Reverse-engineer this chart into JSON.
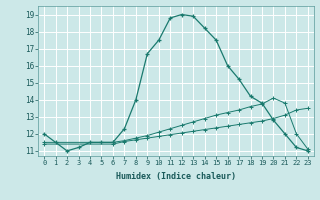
{
  "title": "",
  "xlabel": "Humidex (Indice chaleur)",
  "bg_color": "#cce8e8",
  "grid_color": "#ffffff",
  "line_color": "#1a7a6e",
  "xlim": [
    -0.5,
    23.5
  ],
  "ylim": [
    10.7,
    19.5
  ],
  "yticks": [
    11,
    12,
    13,
    14,
    15,
    16,
    17,
    18,
    19
  ],
  "xticks": [
    0,
    1,
    2,
    3,
    4,
    5,
    6,
    7,
    8,
    9,
    10,
    11,
    12,
    13,
    14,
    15,
    16,
    17,
    18,
    19,
    20,
    21,
    22,
    23
  ],
  "xtick_labels": [
    "0",
    "1",
    "2",
    "3",
    "4",
    "5",
    "6",
    "7",
    "8",
    "9",
    "10",
    "11",
    "12",
    "13",
    "14",
    "15",
    "16",
    "17",
    "18",
    "19",
    "20",
    "21",
    "22",
    "23"
  ],
  "series1_x": [
    0,
    1,
    2,
    3,
    4,
    5,
    6,
    7,
    8,
    9,
    10,
    11,
    12,
    13,
    14,
    15,
    16,
    17,
    18,
    19,
    20,
    21,
    22,
    23
  ],
  "series1_y": [
    12.0,
    11.5,
    11.0,
    11.2,
    11.5,
    11.5,
    11.5,
    12.3,
    14.0,
    16.7,
    17.5,
    18.8,
    19.0,
    18.9,
    18.2,
    17.5,
    16.0,
    15.2,
    14.2,
    13.8,
    12.8,
    12.0,
    11.2,
    11.0
  ],
  "series2_x": [
    0,
    6,
    7,
    8,
    9,
    10,
    11,
    12,
    13,
    14,
    15,
    16,
    17,
    18,
    19,
    20,
    21,
    22,
    23
  ],
  "series2_y": [
    11.5,
    11.5,
    11.6,
    11.75,
    11.9,
    12.1,
    12.3,
    12.5,
    12.7,
    12.9,
    13.1,
    13.25,
    13.4,
    13.6,
    13.75,
    14.1,
    13.8,
    12.0,
    11.1
  ],
  "series3_x": [
    0,
    6,
    7,
    8,
    9,
    10,
    11,
    12,
    13,
    14,
    15,
    16,
    17,
    18,
    19,
    20,
    21,
    22,
    23
  ],
  "series3_y": [
    11.4,
    11.4,
    11.55,
    11.65,
    11.75,
    11.85,
    11.95,
    12.05,
    12.15,
    12.25,
    12.35,
    12.45,
    12.55,
    12.65,
    12.75,
    12.9,
    13.1,
    13.4,
    13.5
  ]
}
